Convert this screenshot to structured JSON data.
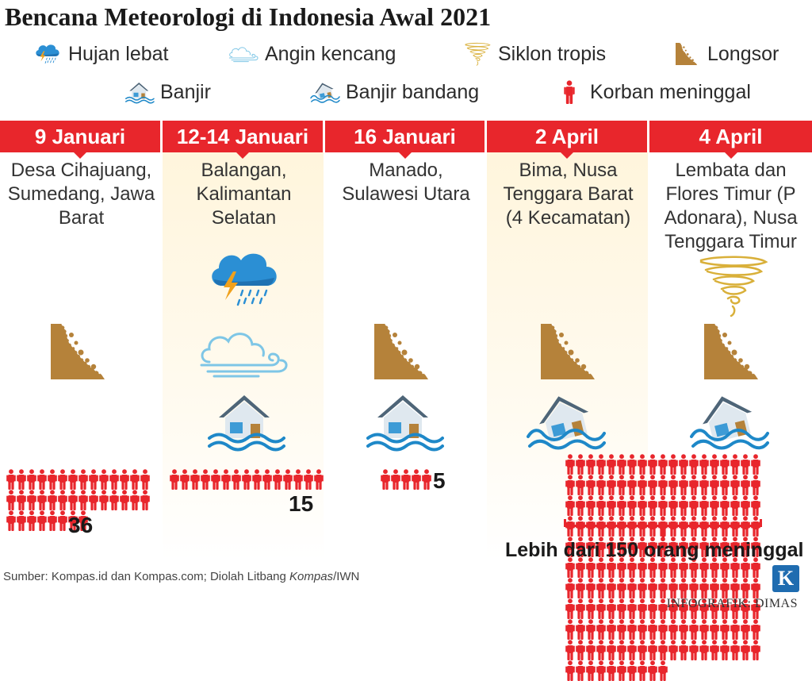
{
  "title": "Bencana Meteorologi di Indonesia Awal 2021",
  "colors": {
    "accent": "#e8262c",
    "highlight": "#fff5dc",
    "landslide": "#b5823a",
    "water": "#1e88c8",
    "wind": "#7ec6e6"
  },
  "legend": [
    {
      "icon": "heavy-rain-icon",
      "label": "Hujan lebat"
    },
    {
      "icon": "strong-wind-icon",
      "label": "Angin kencang"
    },
    {
      "icon": "tropical-cyclone-icon",
      "label": "Siklon tropis"
    },
    {
      "icon": "landslide-icon",
      "label": "Longsor"
    },
    {
      "icon": "flood-icon",
      "label": "Banjir"
    },
    {
      "icon": "flash-flood-icon",
      "label": "Banjir bandang"
    },
    {
      "icon": "death-victim-icon",
      "label": "Korban meninggal"
    }
  ],
  "events": [
    {
      "date": "9 Januari",
      "location": "Desa Cihajuang, Sumedang, Jawa Barat",
      "hazards": [
        "landslide-icon"
      ],
      "deaths": 36,
      "deaths_label": "36"
    },
    {
      "date": "12-14 Januari",
      "location": "Balangan, Kalimantan Selatan",
      "hazards": [
        "heavy-rain-icon",
        "strong-wind-icon",
        "flood-icon"
      ],
      "deaths": 15,
      "deaths_label": "15"
    },
    {
      "date": "16 Januari",
      "location": "Manado, Sulawesi Utara",
      "hazards": [
        "landslide-icon",
        "flood-icon"
      ],
      "deaths": 5,
      "deaths_label": "5"
    },
    {
      "date": "2 April",
      "location": "Bima, Nusa Tenggara Barat (4 Kecamatan)",
      "hazards": [
        "landslide-icon",
        "flash-flood-icon"
      ]
    },
    {
      "date": "4 April",
      "location": "Lembata dan Flores Timur (P Adonara), Nusa Tenggara Timur",
      "hazards": [
        "tropical-cyclone-icon",
        "landslide-icon",
        "flash-flood-icon"
      ]
    }
  ],
  "combined_deaths": {
    "events": [
      "2 April",
      "4 April"
    ],
    "label": "Lebih dari 150 orang meninggal"
  },
  "source": {
    "prefix": "Sumber: Kompas.id dan Kompas.com; Diolah Litbang ",
    "italic": "Kompas",
    "suffix": "/IWN"
  },
  "logo_letter": "K",
  "credit": "INFOGRAFIK: DIMAS"
}
